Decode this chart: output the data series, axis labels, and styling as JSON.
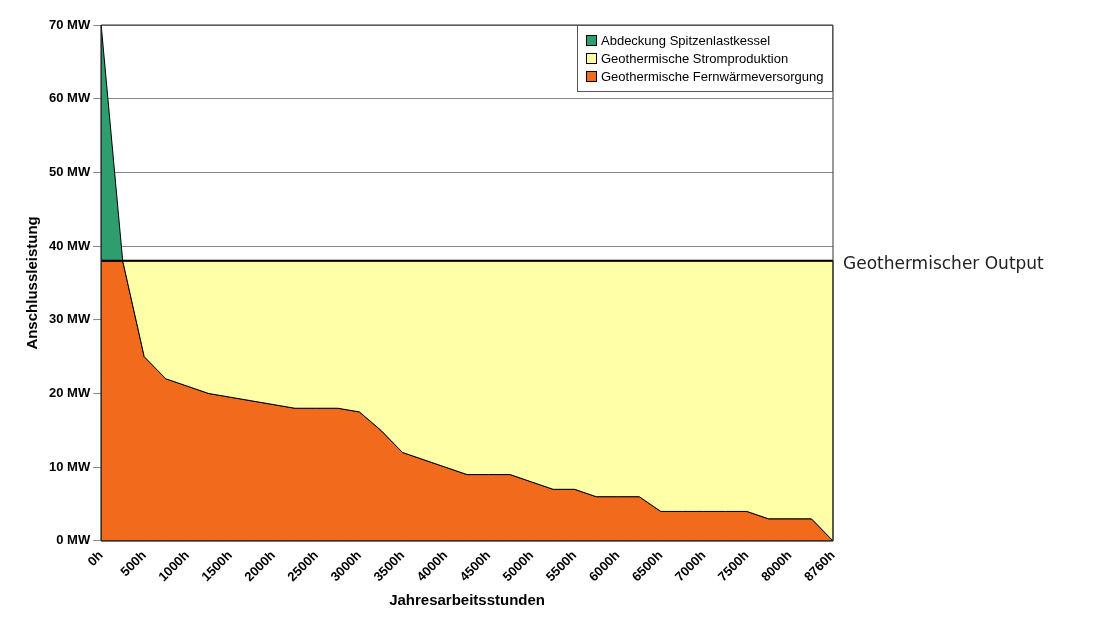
{
  "chart_data": {
    "type": "area",
    "stacked": true,
    "xlabel": "Jahresarbeitsstunden",
    "ylabel": "Anschlussleistung",
    "categories": [
      "0h",
      null,
      "500h",
      null,
      "1000h",
      null,
      "1500h",
      null,
      "2000h",
      null,
      "2500h",
      null,
      "3000h",
      null,
      "3500h",
      null,
      "4000h",
      null,
      "4500h",
      null,
      "5000h",
      null,
      "5500h",
      null,
      "6000h",
      null,
      "6500h",
      null,
      "7000h",
      null,
      "7500h",
      null,
      "8000h",
      null,
      "8760h"
    ],
    "series": [
      {
        "name": "Geothermische Fernwärmeversorgung",
        "color": "#f26b1d",
        "values": [
          38,
          38,
          25,
          22,
          21,
          20,
          19.5,
          19,
          18.5,
          18,
          18,
          18,
          17.5,
          15,
          12,
          11,
          10,
          9,
          9,
          9,
          8,
          7,
          7,
          6,
          6,
          6,
          4,
          4,
          4,
          4,
          4,
          3,
          3,
          3,
          0
        ]
      },
      {
        "name": "Geothermische Stromproduktion",
        "color": "#ffffa8",
        "values": [
          null,
          0,
          13,
          16,
          17,
          18,
          18.5,
          19,
          19.5,
          20,
          20,
          20,
          20.5,
          23,
          26,
          27,
          28,
          29,
          29,
          29,
          30,
          31,
          31,
          32,
          32,
          32,
          34,
          34,
          34,
          34,
          34,
          35,
          35,
          35,
          38
        ]
      },
      {
        "name": "Abdeckung Spitzenlastkessel",
        "color": "#2e9e6e",
        "values": [
          32,
          0,
          null,
          null,
          null,
          null,
          null,
          null,
          null,
          null,
          null,
          null,
          null,
          null,
          null,
          null,
          null,
          null,
          null,
          null,
          null,
          null,
          null,
          null,
          null,
          null,
          null,
          null,
          null,
          null,
          null,
          null,
          null,
          null,
          null
        ]
      }
    ],
    "ylim": [
      0,
      70
    ],
    "yticks": [
      {
        "value": 0,
        "label": "0 MW"
      },
      {
        "value": 10,
        "label": "10 MW"
      },
      {
        "value": 20,
        "label": "20 MW"
      },
      {
        "value": 30,
        "label": "30 MW"
      },
      {
        "value": 40,
        "label": "40 MW"
      },
      {
        "value": 50,
        "label": "50 MW"
      },
      {
        "value": 60,
        "label": "60 MW"
      },
      {
        "value": 70,
        "label": "70 MW"
      }
    ],
    "grid": "y",
    "legend": "top right",
    "marker": "none",
    "line_style": "solid",
    "ref_lines": [
      {
        "axis": "y",
        "value": 38,
        "label": "Geothermischer Output",
        "color": "#000000"
      }
    ]
  }
}
